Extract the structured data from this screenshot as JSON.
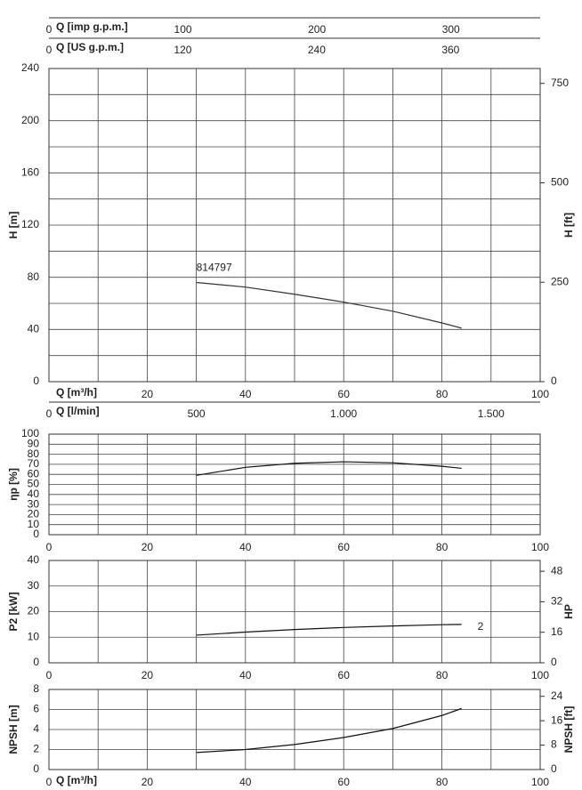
{
  "chart_data": [
    {
      "type": "line",
      "ylabel": "H [m]",
      "y2label": "H [ft]",
      "xlabel": "Q [m³/h]",
      "xlim": [
        0,
        100
      ],
      "xticks": [
        20,
        40,
        60,
        80,
        100
      ],
      "xgrid": [
        0,
        10,
        20,
        30,
        40,
        50,
        60,
        70,
        80,
        90,
        100
      ],
      "ylim": [
        0,
        240
      ],
      "yticks": [
        0,
        40,
        80,
        120,
        160,
        200,
        240
      ],
      "ygrid": [
        0,
        20,
        40,
        60,
        80,
        100,
        120,
        140,
        160,
        180,
        200,
        220,
        240
      ],
      "y2lim": [
        0,
        787.4
      ],
      "y2ticks": [
        0,
        250,
        500,
        750
      ],
      "grid": true,
      "x": [
        30,
        40,
        50,
        60,
        70,
        80,
        84
      ],
      "series": [
        {
          "color": "#333333",
          "values": [
            76,
            72.5,
            67,
            61,
            54,
            45,
            41
          ]
        }
      ],
      "annotations": [
        {
          "text": "814797",
          "x": 30,
          "y": 87
        }
      ],
      "extra_axes": [
        {
          "position": "top",
          "label": "Q [imp g.p.m.]",
          "xlim": [
            0,
            366.6
          ],
          "xticks": [
            0,
            100,
            200,
            300
          ]
        },
        {
          "position": "top",
          "label": "Q [US g.p.m.]",
          "xlim": [
            0,
            440.3
          ],
          "xticks": [
            0,
            120,
            240,
            360
          ]
        },
        {
          "position": "bottom",
          "label": "Q [l/min]",
          "xlim": [
            0,
            1666.7
          ],
          "xticks": [
            0,
            500,
            {
              "value": 1000,
              "label": "1.000"
            },
            {
              "value": 1500,
              "label": "1.500"
            }
          ]
        }
      ]
    },
    {
      "type": "line",
      "ylabel": "ηp [%]",
      "xlim": [
        0,
        100
      ],
      "xticks": [
        0,
        20,
        40,
        60,
        80,
        100
      ],
      "xgrid": [
        0,
        10,
        20,
        30,
        40,
        50,
        60,
        70,
        80,
        90,
        100
      ],
      "ylim": [
        0,
        100
      ],
      "yticks": [
        0,
        10,
        20,
        30,
        40,
        50,
        60,
        70,
        80,
        90,
        100
      ],
      "grid": true,
      "x": [
        30,
        40,
        50,
        60,
        70,
        80,
        84
      ],
      "series": [
        {
          "color": "#111111",
          "values": [
            59,
            67,
            71,
            72.5,
            71.5,
            68,
            66
          ]
        }
      ]
    },
    {
      "type": "line",
      "ylabel": "P2 [kW]",
      "y2label": "HP",
      "xlim": [
        0,
        100
      ],
      "xticks": [
        0,
        20,
        40,
        60,
        80,
        100
      ],
      "xgrid": [
        0,
        10,
        20,
        30,
        40,
        50,
        60,
        70,
        80,
        90,
        100
      ],
      "ylim": [
        0,
        40
      ],
      "yticks": [
        0,
        10,
        20,
        30,
        40
      ],
      "y2lim": [
        0,
        53.64
      ],
      "y2ticks": [
        0,
        16,
        32,
        48
      ],
      "grid": true,
      "x": [
        30,
        40,
        50,
        60,
        70,
        80,
        84
      ],
      "series": [
        {
          "name": "2",
          "color": "#111111",
          "values": [
            10.8,
            12,
            13,
            13.8,
            14.4,
            14.9,
            15
          ]
        }
      ]
    },
    {
      "type": "line",
      "ylabel": "NPSH [m]",
      "y2label": "NPSH [ft]",
      "xlabel": "Q [m³/h]",
      "xlim": [
        0,
        100
      ],
      "xticks": [
        0,
        20,
        40,
        60,
        80,
        100
      ],
      "xgrid": [
        0,
        10,
        20,
        30,
        40,
        50,
        60,
        70,
        80,
        90,
        100
      ],
      "ylim": [
        0,
        8
      ],
      "yticks": [
        0,
        2,
        4,
        6,
        8
      ],
      "y2lim": [
        0,
        26.25
      ],
      "y2ticks": [
        0,
        8,
        16,
        24
      ],
      "grid": true,
      "x": [
        30,
        40,
        50,
        60,
        70,
        80,
        84
      ],
      "series": [
        {
          "color": "#111111",
          "values": [
            1.7,
            2,
            2.5,
            3.2,
            4.1,
            5.4,
            6.1
          ]
        }
      ]
    }
  ]
}
